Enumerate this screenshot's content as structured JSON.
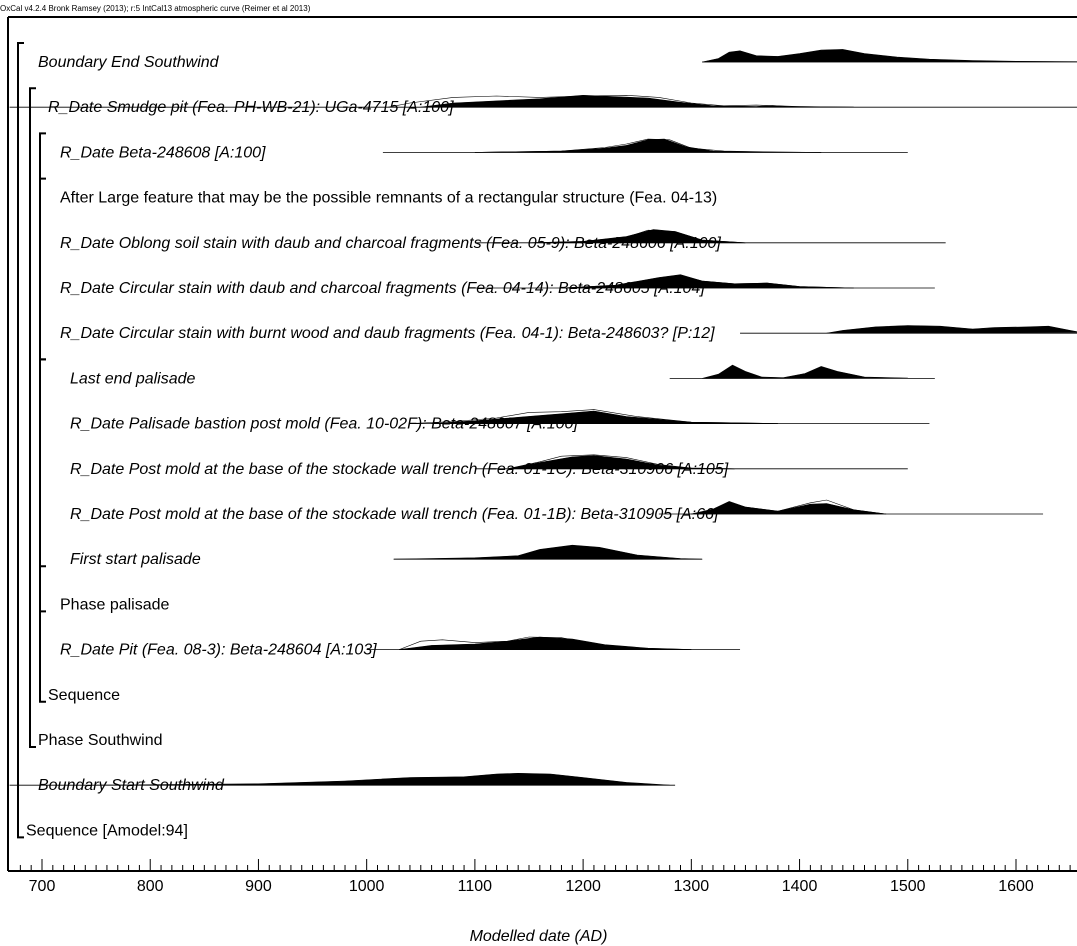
{
  "chart_data": {
    "type": "oxcal-multiplot",
    "credit": "OxCal v4.2.4 Bronk Ramsey (2013); r:5 IntCal13 atmospheric curve (Reimer et al 2013)",
    "xlabel": "Modelled date (AD)",
    "xlim": [
      670,
      1660
    ],
    "xticks": [
      700,
      800,
      900,
      1000,
      1100,
      1200,
      1300,
      1400,
      1500,
      1600
    ],
    "rows": [
      {
        "label": "Boundary End Southwind",
        "italic": true,
        "indent": 1,
        "range": [
          1310,
          1660
        ],
        "prior": [],
        "post": [
          [
            1310,
            0
          ],
          [
            1325,
            0.25
          ],
          [
            1335,
            0.7
          ],
          [
            1345,
            0.8
          ],
          [
            1360,
            0.45
          ],
          [
            1380,
            0.4
          ],
          [
            1400,
            0.6
          ],
          [
            1420,
            0.85
          ],
          [
            1440,
            0.9
          ],
          [
            1460,
            0.6
          ],
          [
            1490,
            0.35
          ],
          [
            1520,
            0.2
          ],
          [
            1560,
            0.1
          ],
          [
            1600,
            0.05
          ],
          [
            1660,
            0.02
          ]
        ]
      },
      {
        "label": "R_Date Smudge pit (Fea. PH-WB-21): UGa-4715 [A:100]",
        "italic": true,
        "indent": 2,
        "range": [
          670,
          1660
        ],
        "prior": [
          [
            1020,
            0
          ],
          [
            1040,
            0.3
          ],
          [
            1080,
            0.7
          ],
          [
            1120,
            0.8
          ],
          [
            1160,
            0.7
          ],
          [
            1200,
            0.8
          ],
          [
            1240,
            0.85
          ],
          [
            1270,
            0.7
          ],
          [
            1300,
            0.3
          ],
          [
            1330,
            0.1
          ],
          [
            1360,
            0.15
          ],
          [
            1400,
            0.05
          ],
          [
            1450,
            0
          ]
        ],
        "post": [
          [
            1050,
            0
          ],
          [
            1080,
            0.3
          ],
          [
            1120,
            0.45
          ],
          [
            1160,
            0.6
          ],
          [
            1200,
            0.85
          ],
          [
            1230,
            0.75
          ],
          [
            1260,
            0.65
          ],
          [
            1290,
            0.35
          ],
          [
            1320,
            0.1
          ],
          [
            1360,
            0.05
          ],
          [
            1375,
            0.12
          ],
          [
            1390,
            0.05
          ],
          [
            1450,
            0
          ]
        ]
      },
      {
        "label": "R_Date Beta-248608 [A:100]",
        "italic": true,
        "indent": 3,
        "range": [
          1015,
          1500
        ],
        "prior": [
          [
            1100,
            0
          ],
          [
            1180,
            0.1
          ],
          [
            1220,
            0.35
          ],
          [
            1240,
            0.6
          ],
          [
            1260,
            0.95
          ],
          [
            1280,
            0.9
          ],
          [
            1300,
            0.3
          ],
          [
            1330,
            0.1
          ],
          [
            1380,
            0.02
          ],
          [
            1420,
            0
          ]
        ],
        "post": [
          [
            1100,
            0
          ],
          [
            1180,
            0.1
          ],
          [
            1220,
            0.3
          ],
          [
            1240,
            0.5
          ],
          [
            1260,
            0.9
          ],
          [
            1275,
            0.95
          ],
          [
            1295,
            0.4
          ],
          [
            1320,
            0.1
          ],
          [
            1370,
            0.02
          ],
          [
            1420,
            0
          ]
        ]
      },
      {
        "label": "After Large feature that may be the possible remnants of a rectangular structure (Fea. 04-13)",
        "italic": false,
        "indent": 3,
        "range": null,
        "prior": [],
        "post": []
      },
      {
        "label": "R_Date Oblong soil stain with daub and charcoal fragments (Fea. 05-9): Beta-248606 [A:100]",
        "italic": true,
        "indent": 3,
        "range": [
          1100,
          1535
        ],
        "prior": [
          [
            1150,
            0
          ],
          [
            1200,
            0.1
          ],
          [
            1240,
            0.4
          ],
          [
            1260,
            0.9
          ],
          [
            1285,
            0.8
          ],
          [
            1310,
            0.2
          ],
          [
            1350,
            0
          ]
        ],
        "post": [
          [
            1150,
            0
          ],
          [
            1200,
            0.1
          ],
          [
            1240,
            0.45
          ],
          [
            1265,
            0.95
          ],
          [
            1285,
            0.8
          ],
          [
            1310,
            0.2
          ],
          [
            1350,
            0
          ]
        ]
      },
      {
        "label": "R_Date Circular stain with daub and charcoal fragments (Fea. 04-14): Beta-248605 [A:104]",
        "italic": true,
        "indent": 3,
        "range": [
          1100,
          1525
        ],
        "prior": [
          [
            1180,
            0
          ],
          [
            1230,
            0.2
          ],
          [
            1270,
            0.7
          ],
          [
            1290,
            0.9
          ],
          [
            1310,
            0.5
          ],
          [
            1340,
            0.3
          ],
          [
            1370,
            0.35
          ],
          [
            1400,
            0.1
          ],
          [
            1450,
            0
          ]
        ],
        "post": [
          [
            1180,
            0
          ],
          [
            1230,
            0.2
          ],
          [
            1270,
            0.75
          ],
          [
            1290,
            0.95
          ],
          [
            1310,
            0.5
          ],
          [
            1340,
            0.3
          ],
          [
            1370,
            0.35
          ],
          [
            1400,
            0.1
          ],
          [
            1450,
            0
          ]
        ]
      },
      {
        "label": "R_Date Circular stain with burnt wood and daub fragments (Fea. 04-1): Beta-248603? [P:12]",
        "italic": true,
        "indent": 3,
        "range": [
          1345,
          1660
        ],
        "prior": [],
        "post": [
          [
            1425,
            0
          ],
          [
            1440,
            0.2
          ],
          [
            1470,
            0.45
          ],
          [
            1500,
            0.55
          ],
          [
            1530,
            0.5
          ],
          [
            1560,
            0.3
          ],
          [
            1580,
            0.4
          ],
          [
            1610,
            0.45
          ],
          [
            1630,
            0.5
          ],
          [
            1650,
            0.2
          ],
          [
            1660,
            0.05
          ]
        ]
      },
      {
        "label": "Last end palisade",
        "italic": true,
        "indent": 5,
        "range": [
          1280,
          1525
        ],
        "prior": [],
        "post": [
          [
            1310,
            0
          ],
          [
            1325,
            0.3
          ],
          [
            1338,
            0.95
          ],
          [
            1350,
            0.5
          ],
          [
            1365,
            0.1
          ],
          [
            1385,
            0.05
          ],
          [
            1405,
            0.35
          ],
          [
            1420,
            0.85
          ],
          [
            1435,
            0.5
          ],
          [
            1460,
            0.1
          ],
          [
            1500,
            0.02
          ]
        ]
      },
      {
        "label": "R_Date Palisade bastion post mold (Fea. 10-02F): Beta-248607 [A:100]",
        "italic": true,
        "indent": 5,
        "range": [
          1040,
          1520
        ],
        "prior": [
          [
            1040,
            0
          ],
          [
            1080,
            0.15
          ],
          [
            1120,
            0.4
          ],
          [
            1150,
            0.8
          ],
          [
            1180,
            0.85
          ],
          [
            1210,
            1
          ],
          [
            1250,
            0.5
          ],
          [
            1300,
            0.1
          ],
          [
            1380,
            0
          ]
        ],
        "post": [
          [
            1060,
            0
          ],
          [
            1100,
            0.2
          ],
          [
            1140,
            0.45
          ],
          [
            1180,
            0.7
          ],
          [
            1210,
            0.9
          ],
          [
            1240,
            0.5
          ],
          [
            1300,
            0.1
          ],
          [
            1380,
            0
          ]
        ]
      },
      {
        "label": "R_Date Post mold at the base of the stockade wall trench (Fea. 01-1C): Beta-310906 [A:105]",
        "italic": true,
        "indent": 5,
        "range": [
          1100,
          1500
        ],
        "prior": [
          [
            1130,
            0
          ],
          [
            1160,
            0.5
          ],
          [
            1180,
            0.9
          ],
          [
            1210,
            1
          ],
          [
            1240,
            0.8
          ],
          [
            1270,
            0.3
          ],
          [
            1300,
            0.05
          ],
          [
            1340,
            0
          ]
        ],
        "post": [
          [
            1130,
            0
          ],
          [
            1160,
            0.45
          ],
          [
            1190,
            0.85
          ],
          [
            1210,
            0.95
          ],
          [
            1240,
            0.7
          ],
          [
            1270,
            0.25
          ],
          [
            1300,
            0.05
          ],
          [
            1340,
            0
          ]
        ]
      },
      {
        "label": "R_Date Post mold at the base of the stockade wall trench (Fea. 01-1B): Beta-310905 [A:66]",
        "italic": true,
        "indent": 5,
        "range": [
          1270,
          1625
        ],
        "prior": [
          [
            1300,
            0
          ],
          [
            1320,
            0.3
          ],
          [
            1335,
            0.8
          ],
          [
            1350,
            0.5
          ],
          [
            1380,
            0.2
          ],
          [
            1410,
            0.8
          ],
          [
            1425,
            1
          ],
          [
            1450,
            0.3
          ],
          [
            1480,
            0
          ]
        ],
        "post": [
          [
            1300,
            0
          ],
          [
            1320,
            0.35
          ],
          [
            1335,
            0.9
          ],
          [
            1350,
            0.5
          ],
          [
            1380,
            0.2
          ],
          [
            1410,
            0.7
          ],
          [
            1425,
            0.75
          ],
          [
            1450,
            0.3
          ],
          [
            1480,
            0
          ]
        ]
      },
      {
        "label": "First start palisade",
        "italic": true,
        "indent": 5,
        "range": [
          1025,
          1310
        ],
        "prior": [],
        "post": [
          [
            1025,
            0
          ],
          [
            1100,
            0.1
          ],
          [
            1140,
            0.25
          ],
          [
            1160,
            0.7
          ],
          [
            1190,
            1
          ],
          [
            1215,
            0.85
          ],
          [
            1250,
            0.3
          ],
          [
            1290,
            0.05
          ],
          [
            1310,
            0
          ]
        ]
      },
      {
        "label": "Phase palisade",
        "italic": false,
        "indent": 4,
        "range": null,
        "prior": [],
        "post": []
      },
      {
        "label": "R_Date Pit (Fea. 08-3): Beta-248604 [A:103]",
        "italic": true,
        "indent": 3,
        "range": [
          1000,
          1345
        ],
        "prior": [
          [
            1030,
            0
          ],
          [
            1050,
            0.6
          ],
          [
            1070,
            0.7
          ],
          [
            1100,
            0.5
          ],
          [
            1130,
            0.6
          ],
          [
            1150,
            0.9
          ],
          [
            1180,
            0.85
          ],
          [
            1210,
            0.4
          ],
          [
            1250,
            0.1
          ],
          [
            1300,
            0
          ]
        ],
        "post": [
          [
            1030,
            0
          ],
          [
            1060,
            0.3
          ],
          [
            1100,
            0.4
          ],
          [
            1130,
            0.6
          ],
          [
            1160,
            0.9
          ],
          [
            1190,
            0.75
          ],
          [
            1220,
            0.35
          ],
          [
            1260,
            0.1
          ],
          [
            1300,
            0
          ]
        ]
      },
      {
        "label": "Sequence",
        "italic": false,
        "indent": 2,
        "range": null,
        "prior": [],
        "post": []
      },
      {
        "label": "Phase Southwind",
        "italic": false,
        "indent": 1,
        "range": null,
        "prior": [],
        "post": []
      },
      {
        "label": "Boundary Start Southwind",
        "italic": true,
        "indent": 1,
        "range": [
          670,
          1285
        ],
        "prior": [],
        "post": [
          [
            750,
            0
          ],
          [
            900,
            0.1
          ],
          [
            980,
            0.3
          ],
          [
            1040,
            0.55
          ],
          [
            1090,
            0.6
          ],
          [
            1120,
            0.8
          ],
          [
            1140,
            0.85
          ],
          [
            1170,
            0.8
          ],
          [
            1200,
            0.55
          ],
          [
            1240,
            0.2
          ],
          [
            1280,
            0
          ]
        ]
      },
      {
        "label": "Sequence [Amodel:94]",
        "italic": false,
        "indent": 0,
        "range": null,
        "prior": [],
        "post": []
      }
    ],
    "brackets": [
      {
        "first": 0,
        "last": 17,
        "level": 0
      },
      {
        "first": 1,
        "last": 15,
        "level": 1
      },
      {
        "first": 2,
        "last": 14,
        "level": 2
      },
      {
        "first": 3,
        "last": 3,
        "level": 3
      },
      {
        "first": 7,
        "last": 12,
        "level": 3
      },
      {
        "first": 7,
        "last": 11,
        "level": 4
      }
    ]
  }
}
